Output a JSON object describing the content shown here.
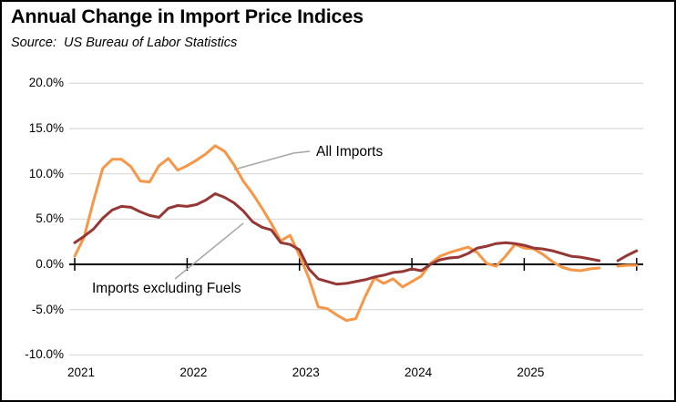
{
  "chart_data": {
    "type": "line",
    "title": "Annual Change in Import Price Indices",
    "source": "Source:  US Bureau of Labor Statistics",
    "frequency": "monthly",
    "x_axis": {
      "tick_labels": [
        "2021",
        "2022",
        "2023",
        "2024",
        "2025"
      ],
      "months_per_tick": 12
    },
    "y_axis": {
      "min": -10,
      "max": 20,
      "ticks": [
        {
          "v": 20,
          "label": "20.0%"
        },
        {
          "v": 15,
          "label": "15.0%"
        },
        {
          "v": 10,
          "label": "10.0%"
        },
        {
          "v": 5,
          "label": "5.0%"
        },
        {
          "v": 0,
          "label": "0.0%"
        },
        {
          "v": -5,
          "label": "-5.0%"
        },
        {
          "v": -10,
          "label": "-10.0%"
        }
      ],
      "zero_axis": true,
      "grid": true
    },
    "series": [
      {
        "name": "All Imports",
        "color": "#F79646",
        "values": [
          0.9,
          3.0,
          7.0,
          10.6,
          11.6,
          11.6,
          10.8,
          9.2,
          9.1,
          10.9,
          11.7,
          10.4,
          10.9,
          11.5,
          12.2,
          13.1,
          12.5,
          11.0,
          9.2,
          7.8,
          6.2,
          4.5,
          2.6,
          3.2,
          1.0,
          -1.5,
          -4.7,
          -4.9,
          -5.6,
          -6.2,
          -6.0,
          -3.6,
          -1.5,
          -2.1,
          -1.6,
          -2.5,
          -1.9,
          -1.3,
          0.1,
          0.9,
          1.3,
          1.6,
          1.9,
          1.3,
          0.1,
          -0.2,
          0.9,
          2.2,
          1.8,
          1.7,
          1.1,
          0.3,
          -0.3,
          -0.6,
          -0.7,
          -0.5,
          -0.4,
          null,
          -0.2,
          -0.1,
          -0.1
        ]
      },
      {
        "name": "Imports excluding Fuels",
        "color": "#953735",
        "values": [
          2.4,
          3.1,
          3.9,
          5.1,
          6.0,
          6.4,
          6.3,
          5.8,
          5.4,
          5.2,
          6.2,
          6.5,
          6.4,
          6.6,
          7.1,
          7.8,
          7.4,
          6.8,
          5.9,
          4.7,
          4.1,
          3.8,
          2.4,
          2.2,
          1.6,
          -0.5,
          -1.6,
          -1.9,
          -2.2,
          -2.1,
          -1.9,
          -1.7,
          -1.4,
          -1.2,
          -0.9,
          -0.8,
          -0.5,
          -0.7,
          0.0,
          0.5,
          0.7,
          0.8,
          1.2,
          1.8,
          2.0,
          2.3,
          2.4,
          2.3,
          2.1,
          1.8,
          1.7,
          1.5,
          1.2,
          0.9,
          0.8,
          0.6,
          0.4,
          null,
          0.4,
          1.0,
          1.5
        ]
      }
    ],
    "data_gap_note": "both lines break shortly before the final short segments at the right edge"
  },
  "colors": {
    "gridline": "#D9D9D9",
    "zero_axis": "#000000",
    "leader_line": "#A6A6A6",
    "text": "#000000",
    "border": "#000000",
    "background": "#FFFFFF"
  }
}
